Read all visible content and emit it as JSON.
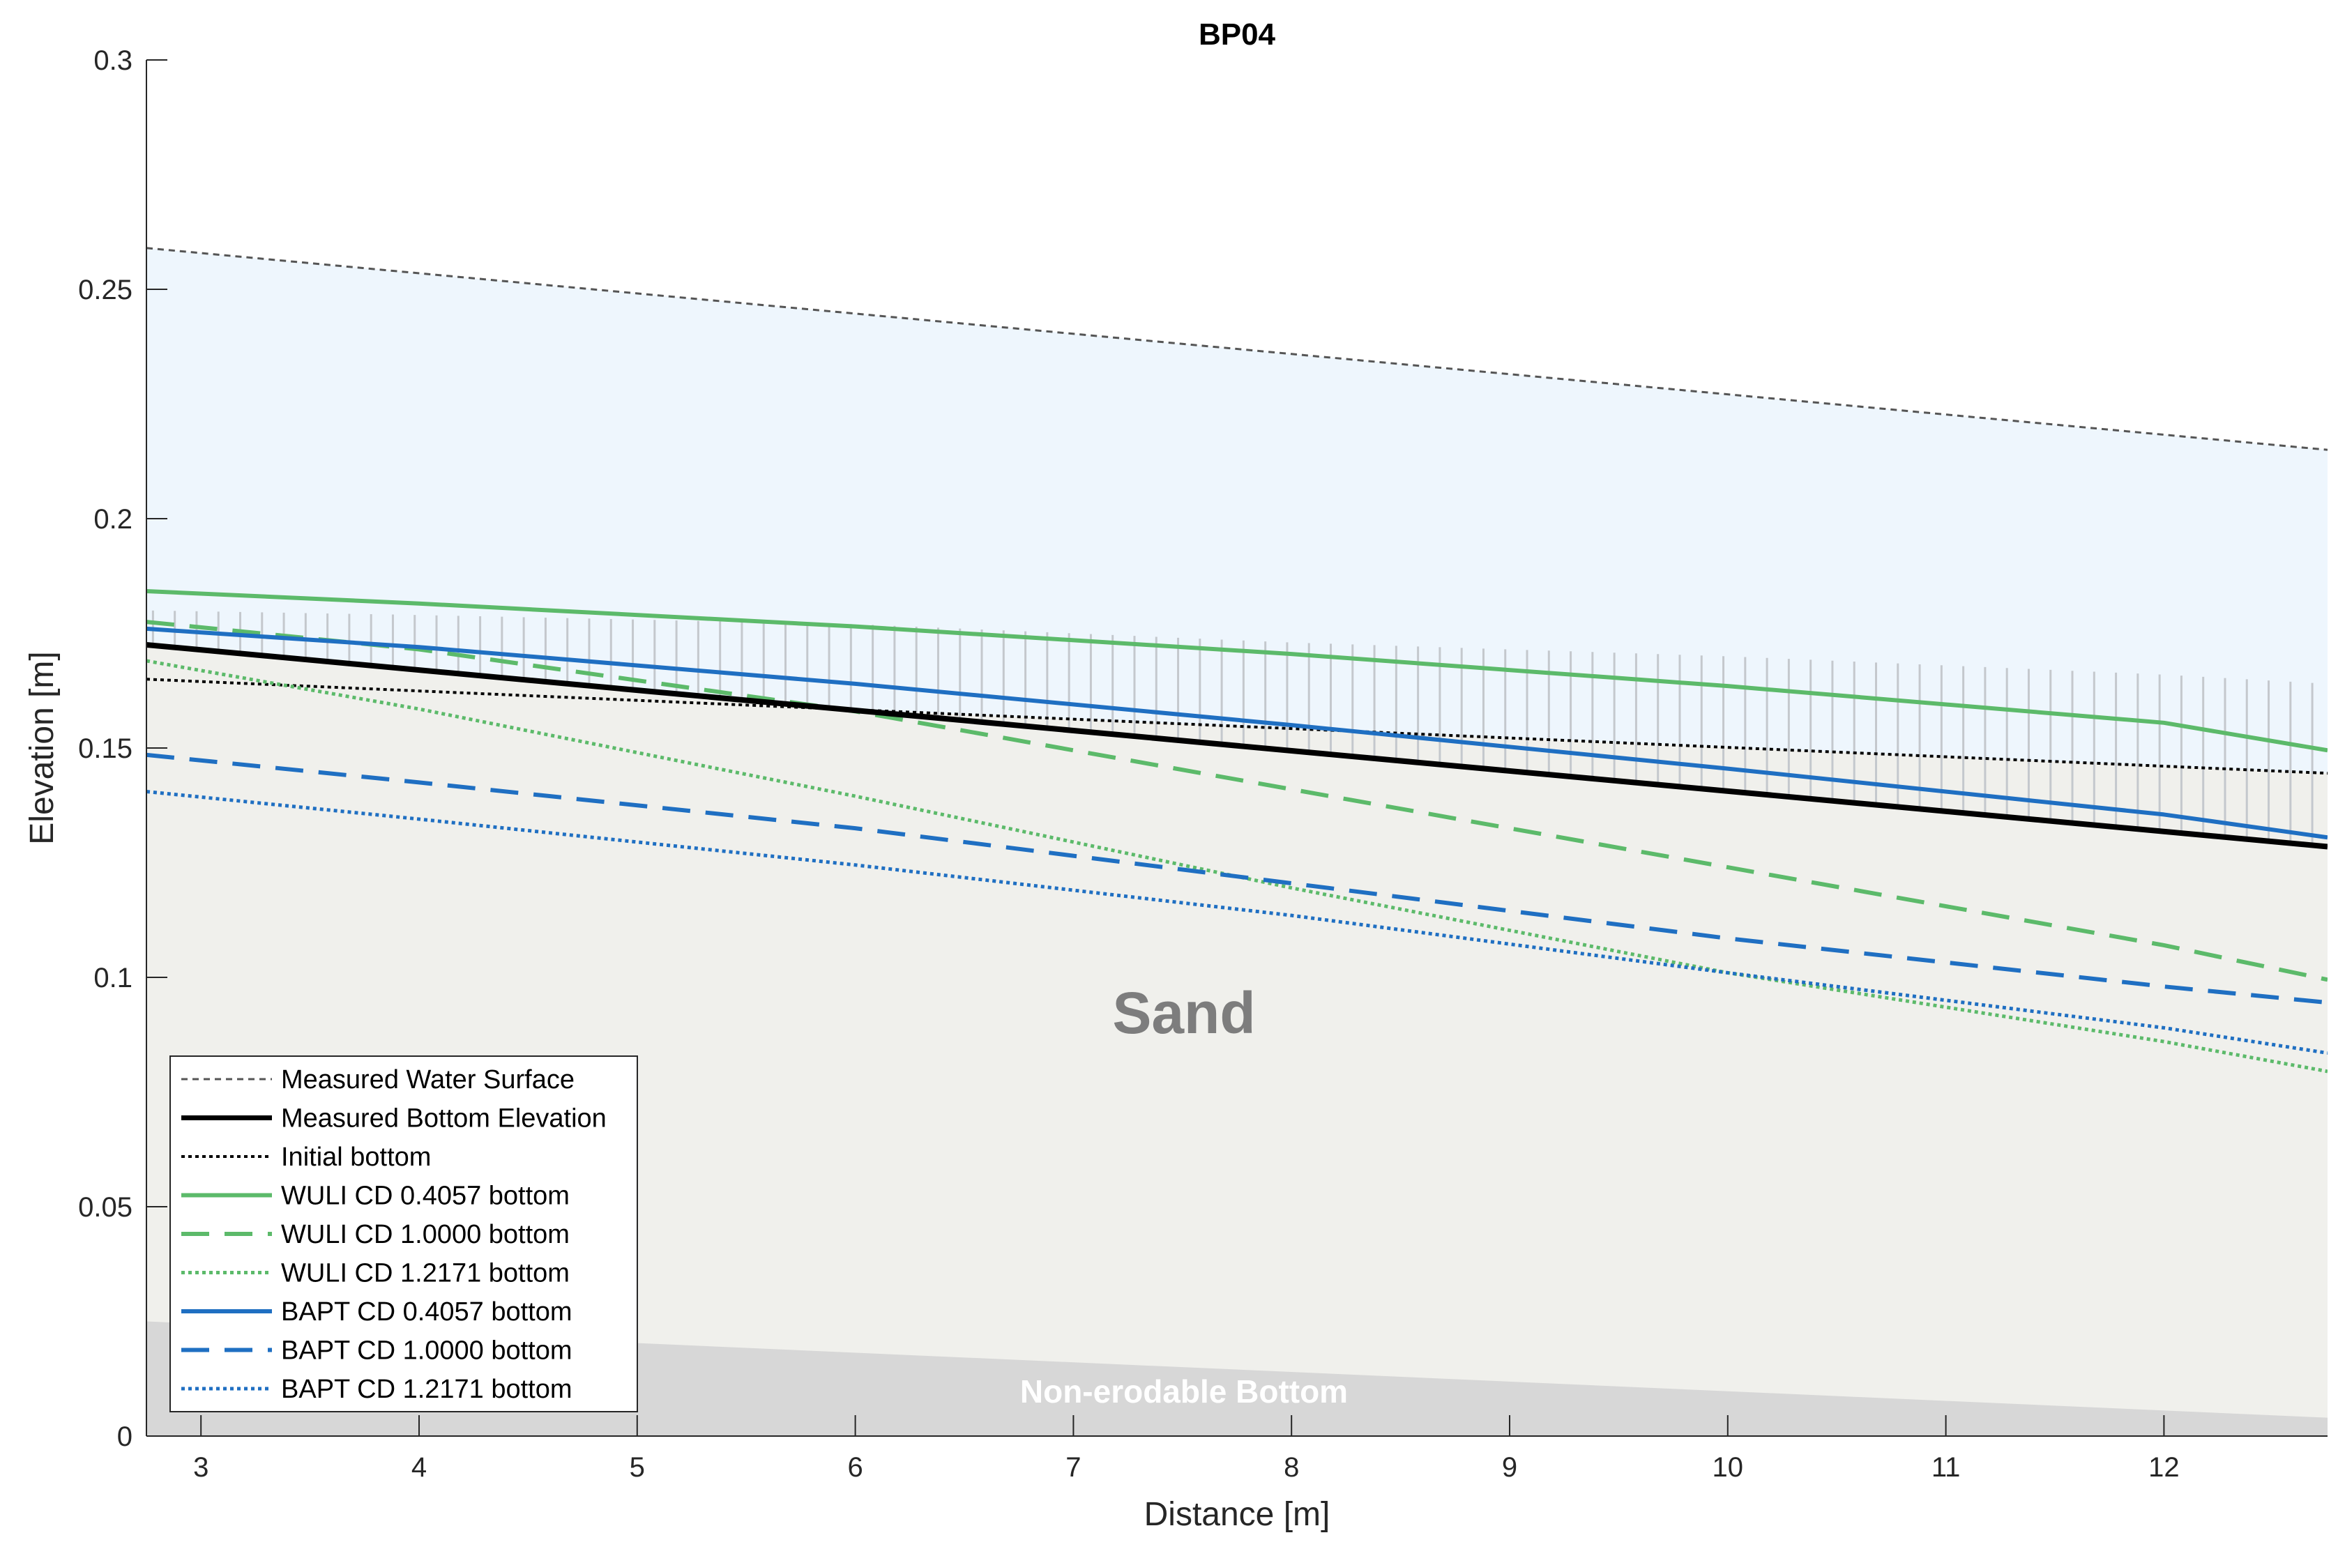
{
  "chart_data": {
    "type": "line",
    "title": "BP04",
    "xlabel": "Distance [m]",
    "ylabel": "Elevation [m]",
    "xlim": [
      2.75,
      12.75
    ],
    "ylim": [
      0,
      0.3
    ],
    "xticks": [
      3,
      4,
      5,
      6,
      7,
      8,
      9,
      10,
      11,
      12
    ],
    "yticks": [
      0,
      0.05,
      0.1,
      0.15,
      0.2,
      0.25,
      0.3
    ],
    "ytick_labels": [
      "0",
      "0.05",
      "0.1",
      "0.15",
      "0.2",
      "0.25",
      "0.3"
    ],
    "grid": false,
    "legend_position": "bottom-left",
    "regions": {
      "water_label": "",
      "sand_label": "Sand",
      "bottom_label": "Non-erodable Bottom",
      "water_color": "#eef6fd",
      "sand_color": "#f0f0ec",
      "bottom_color": "#d7d7d7",
      "bottom_surface": {
        "x": [
          2.75,
          12.75
        ],
        "y": [
          0.025,
          0.004
        ]
      },
      "hatch_top": {
        "x": [
          2.75,
          4,
          6,
          8,
          10,
          12,
          12.75
        ],
        "y": [
          0.18,
          0.179,
          0.177,
          0.173,
          0.17,
          0.166,
          0.164
        ]
      }
    },
    "series": [
      {
        "name": "Measured Water Surface",
        "color": "#555555",
        "style": "dashed-fine",
        "width": 3,
        "x": [
          2.75,
          12.75
        ],
        "y": [
          0.259,
          0.215
        ]
      },
      {
        "name": "Measured Bottom Elevation",
        "color": "#000000",
        "style": "solid",
        "width": 8,
        "x": [
          2.75,
          12.75
        ],
        "y": [
          0.1725,
          0.1285
        ]
      },
      {
        "name": "Initial bottom",
        "color": "#000000",
        "style": "dotted",
        "width": 4,
        "x": [
          2.75,
          12.75
        ],
        "y": [
          0.165,
          0.1445
        ]
      },
      {
        "name": "WULI CD 0.4057 bottom",
        "color": "#5cba6a",
        "style": "solid",
        "width": 6,
        "x": [
          2.75,
          4,
          6,
          8,
          10,
          12,
          12.75
        ],
        "y": [
          0.1842,
          0.1815,
          0.1765,
          0.1705,
          0.1635,
          0.1555,
          0.1495
        ]
      },
      {
        "name": "WULI CD 1.0000 bottom",
        "color": "#5cba6a",
        "style": "dashed",
        "width": 6,
        "x": [
          2.75,
          4,
          6,
          8,
          10,
          12,
          12.75
        ],
        "y": [
          0.1775,
          0.1715,
          0.158,
          0.141,
          0.124,
          0.107,
          0.0995
        ]
      },
      {
        "name": "WULI CD 1.2171 bottom",
        "color": "#5cba6a",
        "style": "dotted",
        "width": 5,
        "x": [
          2.75,
          4,
          6,
          8,
          10,
          12,
          12.75
        ],
        "y": [
          0.169,
          0.1585,
          0.1395,
          0.1195,
          0.101,
          0.086,
          0.0795
        ]
      },
      {
        "name": "BAPT CD 0.4057 bottom",
        "color": "#1f6fc2",
        "style": "solid",
        "width": 6,
        "x": [
          2.75,
          4,
          6,
          8,
          10,
          12,
          12.75
        ],
        "y": [
          0.176,
          0.172,
          0.164,
          0.155,
          0.1455,
          0.1355,
          0.1305
        ]
      },
      {
        "name": "BAPT CD 1.0000 bottom",
        "color": "#1f6fc2",
        "style": "dashed",
        "width": 6,
        "x": [
          2.75,
          4,
          6,
          8,
          10,
          12,
          12.75
        ],
        "y": [
          0.1485,
          0.1425,
          0.1325,
          0.1205,
          0.1085,
          0.098,
          0.0945
        ]
      },
      {
        "name": "BAPT CD 1.2171 bottom",
        "color": "#1f6fc2",
        "style": "dotted",
        "width": 5,
        "x": [
          2.75,
          4,
          6,
          8,
          10,
          12,
          12.75
        ],
        "y": [
          0.1405,
          0.1345,
          0.1245,
          0.1135,
          0.101,
          0.089,
          0.0835
        ]
      }
    ]
  }
}
